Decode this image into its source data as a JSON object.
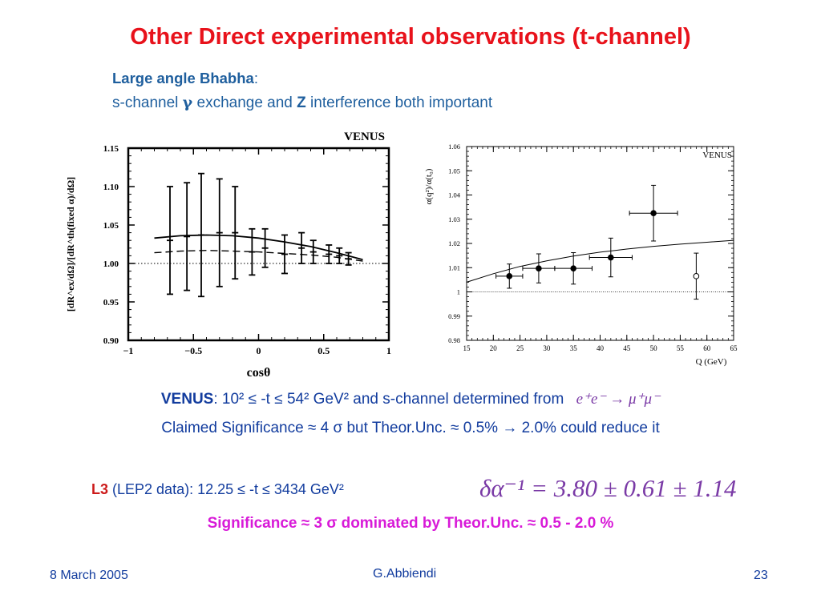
{
  "slide": {
    "title": "Other Direct experimental observations (t-channel)",
    "subtitle_bold": "Large angle Bhabha",
    "subtitle_colon": ":",
    "line2_a": "s-channel ",
    "line2_gamma": "γ",
    "line2_b": " exchange and ",
    "line2_z": "Z",
    "line2_c": " interference both important",
    "venus_bold": "VENUS",
    "venus_text": ": 10² ≤ -t ≤ 54² GeV² and s-channel determined from",
    "venus_reaction": "e⁺e⁻ → μ⁺μ⁻",
    "claim_text": "Claimed Significance ≈ 4 σ   but Theor.Unc. ≈ 0.5% → 2.0% could reduce it",
    "l3_bold": "L3",
    "l3_text": " (LEP2 data): 12.25 ≤ -t ≤ 3434 GeV²",
    "l3_formula": "δα⁻¹ = 3.80 ± 0.61 ± 1.14",
    "significance_text": "Significance ≈ 3 σ      dominated by  Theor.Unc. ≈ 0.5 - 2.0 %",
    "footer_date": "8 March  2005",
    "footer_author": "G.Abbiendi",
    "footer_page": "23"
  },
  "colors": {
    "title": "#e8121b",
    "subtitle": "#1f5f9e",
    "body": "#123c9e",
    "significance": "#d81ad8",
    "formula": "#7a3aa6"
  },
  "chart_data": [
    {
      "type": "scatter",
      "title": "VENUS",
      "xlabel": "cosθ",
      "ylabel": "[dR^ex/dΩ]/[dR^th(fixed α)/dΩ]",
      "xlim": [
        -1,
        1
      ],
      "ylim": [
        0.9,
        1.15
      ],
      "xticks": [
        "−1",
        "−0.5",
        "0",
        "0.5",
        "1"
      ],
      "yticks": [
        "0.90",
        "0.95",
        "1.00",
        "1.05",
        "1.10",
        "1.15"
      ],
      "points": [
        {
          "x": -0.68,
          "y": 1.03,
          "err": 0.07
        },
        {
          "x": -0.55,
          "y": 1.035,
          "err": 0.07
        },
        {
          "x": -0.44,
          "y": 1.037,
          "err": 0.08
        },
        {
          "x": -0.3,
          "y": 1.04,
          "err": 0.07
        },
        {
          "x": -0.18,
          "y": 1.04,
          "err": 0.06
        },
        {
          "x": -0.05,
          "y": 1.015,
          "err": 0.03
        },
        {
          "x": 0.05,
          "y": 1.02,
          "err": 0.025
        },
        {
          "x": 0.2,
          "y": 1.012,
          "err": 0.025
        },
        {
          "x": 0.33,
          "y": 1.02,
          "err": 0.02
        },
        {
          "x": 0.42,
          "y": 1.015,
          "err": 0.015
        },
        {
          "x": 0.54,
          "y": 1.012,
          "err": 0.012
        },
        {
          "x": 0.62,
          "y": 1.01,
          "err": 0.01
        },
        {
          "x": 0.69,
          "y": 1.006,
          "err": 0.008
        }
      ],
      "curves": [
        {
          "name": "solid",
          "x": [
            -0.8,
            -0.6,
            -0.4,
            -0.2,
            0,
            0.2,
            0.4,
            0.6,
            0.8
          ],
          "y": [
            1.033,
            1.036,
            1.037,
            1.036,
            1.033,
            1.028,
            1.022,
            1.014,
            1.005
          ]
        },
        {
          "name": "dashed",
          "x": [
            -0.8,
            -0.6,
            -0.4,
            -0.2,
            0,
            0.2,
            0.4,
            0.6,
            0.8
          ],
          "y": [
            1.014,
            1.016,
            1.017,
            1.016,
            1.015,
            1.013,
            1.011,
            1.008,
            1.003
          ]
        }
      ],
      "reference_y": 1.0
    },
    {
      "type": "scatter",
      "title": "VENUS",
      "xlabel": "Q (GeV)",
      "ylabel": "α(q²)/α(t₀)",
      "xlim": [
        15,
        65
      ],
      "ylim": [
        0.98,
        1.06
      ],
      "xticks": [
        "15",
        "20",
        "25",
        "30",
        "35",
        "40",
        "45",
        "50",
        "55",
        "60",
        "65"
      ],
      "yticks": [
        "0.98",
        "0.99",
        "1",
        "1.01",
        "1.02",
        "1.03",
        "1.04",
        "1.05",
        "1.06"
      ],
      "points": [
        {
          "x": 23,
          "y": 1.0065,
          "xerr": 2.5,
          "err": 0.005,
          "filled": true
        },
        {
          "x": 28.5,
          "y": 1.0097,
          "xerr": 3.0,
          "err": 0.006,
          "filled": true
        },
        {
          "x": 35,
          "y": 1.0097,
          "xerr": 3.5,
          "err": 0.0065,
          "filled": true
        },
        {
          "x": 42,
          "y": 1.0142,
          "xerr": 4.0,
          "err": 0.008,
          "filled": true
        },
        {
          "x": 50,
          "y": 1.0325,
          "xerr": 4.5,
          "err": 0.0115,
          "filled": true
        },
        {
          "x": 58,
          "y": 1.0065,
          "xerr": 0,
          "err": 0.0095,
          "filled": false
        }
      ],
      "curves": [
        {
          "name": "theory",
          "x": [
            15,
            20,
            25,
            30,
            35,
            40,
            45,
            50,
            55,
            60,
            65
          ],
          "y": [
            1.004,
            1.0075,
            1.0105,
            1.0128,
            1.0148,
            1.0164,
            1.0177,
            1.0188,
            1.0197,
            1.0205,
            1.0213
          ]
        }
      ],
      "reference_y": 1.0
    }
  ]
}
